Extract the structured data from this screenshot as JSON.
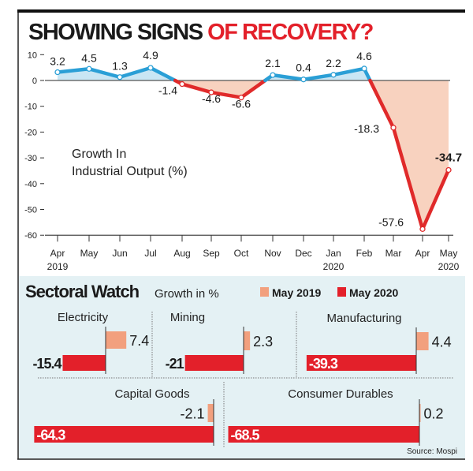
{
  "title": {
    "part1": "SHOWING SIGNS ",
    "part2": "OF RECOVERY?"
  },
  "colors": {
    "positive_line": "#2a9fd6",
    "negative_line": "#e02a2a",
    "positive_fill": "#c9e6f4",
    "negative_fill": "#f8d2bf",
    "panel_bg": "#e4f1f4",
    "may2019": "#f2a07e",
    "may2020": "#e3202a"
  },
  "chart_data": [
    {
      "type": "line",
      "title": "SHOWING SIGNS OF RECOVERY?",
      "annotation": [
        "Growth In",
        "Industrial Output (%)"
      ],
      "categories": [
        "Apr",
        "May",
        "Jun",
        "Jul",
        "Aug",
        "Sep",
        "Oct",
        "Nov",
        "Dec",
        "Jan",
        "Feb",
        "Mar",
        "Apr",
        "May"
      ],
      "category_years": [
        "2019",
        "",
        "",
        "",
        "",
        "",
        "",
        "",
        "",
        "2020",
        "",
        "",
        "",
        "2020"
      ],
      "values": [
        3.2,
        4.5,
        1.3,
        4.9,
        -1.4,
        -4.6,
        -6.6,
        2.1,
        0.4,
        2.2,
        4.6,
        -18.3,
        -57.6,
        -34.7
      ],
      "labels": [
        "3.2",
        "4.5",
        "1.3",
        "4.9",
        "-1.4",
        "-4.6",
        "-6.6",
        "2.1",
        "0.4",
        "2.2",
        "4.6",
        "-18.3",
        "-57.6",
        "-34.7"
      ],
      "yticks": [
        10,
        0,
        -10,
        -20,
        -30,
        -40,
        -50,
        -60
      ],
      "ylim": [
        -60,
        10
      ],
      "xlabel": "",
      "ylabel": ""
    },
    {
      "type": "bar",
      "title": "Sectoral Watch",
      "subtitle": "Growth in %",
      "legend": {
        "position": "top",
        "entries": [
          "May 2019",
          "May 2020"
        ]
      },
      "categories": [
        "Electricity",
        "Mining",
        "Manufacturing",
        "Capital Goods",
        "Consumer Durables"
      ],
      "series": [
        {
          "name": "May 2019",
          "values": [
            7.4,
            2.3,
            4.4,
            -2.1,
            0.2
          ],
          "labels": [
            "7.4",
            "2.3",
            "4.4",
            "-2.1",
            "0.2"
          ]
        },
        {
          "name": "May 2020",
          "values": [
            -15.4,
            -21,
            -39.3,
            -64.3,
            -68.5
          ],
          "labels": [
            "-15.4",
            "-21",
            "-39.3",
            "-64.3",
            "-68.5"
          ]
        }
      ]
    }
  ],
  "source": "Source: Mospi"
}
